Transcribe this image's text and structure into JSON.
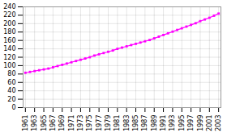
{
  "chart_data": {
    "type": "line",
    "x": [
      1961,
      1962,
      1963,
      1964,
      1965,
      1966,
      1967,
      1968,
      1969,
      1970,
      1971,
      1972,
      1973,
      1974,
      1975,
      1976,
      1977,
      1978,
      1979,
      1980,
      1981,
      1982,
      1983,
      1984,
      1985,
      1986,
      1987,
      1988,
      1989,
      1990,
      1991,
      1992,
      1993,
      1994,
      1995,
      1996,
      1997,
      1998,
      1999,
      2000,
      2001,
      2002,
      2003
    ],
    "values": [
      83,
      85,
      87,
      89,
      91,
      93,
      96,
      99,
      102,
      105,
      108,
      111,
      114,
      117,
      120,
      124,
      127,
      130,
      133,
      136,
      140,
      143,
      146,
      149,
      152,
      155,
      158,
      161,
      165,
      169,
      173,
      177,
      181,
      185,
      189,
      193,
      197,
      201,
      206,
      210,
      214,
      219,
      224
    ],
    "color": "#ff00ff",
    "marker": "square",
    "xlim": [
      1960.5,
      2003.5
    ],
    "xticks": [
      1961,
      1963,
      1965,
      1967,
      1969,
      1971,
      1973,
      1975,
      1977,
      1979,
      1981,
      1983,
      1985,
      1987,
      1989,
      1991,
      1993,
      1995,
      1997,
      1999,
      2001,
      2003
    ],
    "ylim": [
      0,
      240
    ],
    "yticks": [
      0,
      20,
      40,
      60,
      80,
      100,
      120,
      140,
      160,
      180,
      200,
      220,
      240
    ],
    "grid": true
  }
}
